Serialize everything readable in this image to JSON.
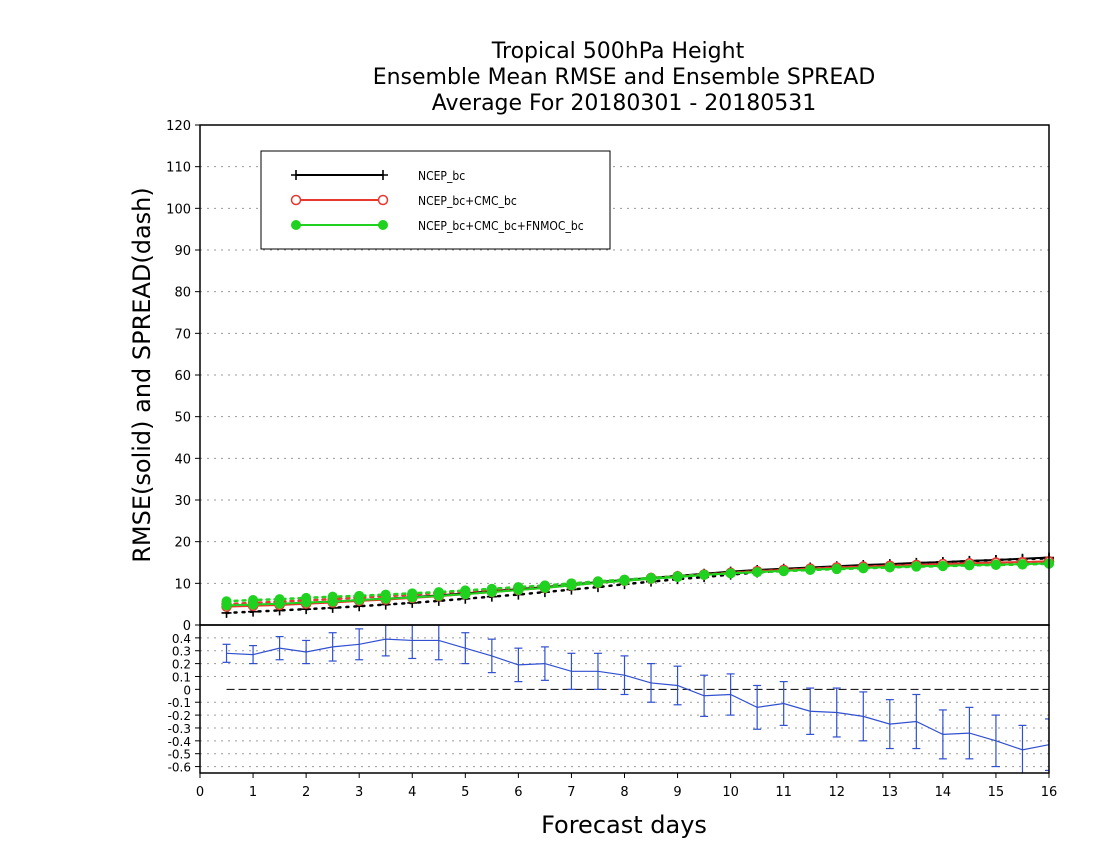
{
  "title_lines": [
    "Tropical 500hPa Height",
    "Ensemble Mean RMSE and Ensemble SPREAD",
    "Average For 20180301 - 20180531"
  ],
  "chart_data": [
    {
      "type": "line",
      "ylabel": "RMSE(solid) and SPREAD(dash)",
      "xlim": [
        0,
        16
      ],
      "ylim": [
        0,
        120
      ],
      "yticks": [
        0,
        10,
        20,
        30,
        40,
        50,
        60,
        70,
        80,
        90,
        100,
        110,
        120
      ],
      "grid": true,
      "legend_position": "top-left",
      "x": [
        0.5,
        1.0,
        1.5,
        2.0,
        2.5,
        3.0,
        3.5,
        4.0,
        4.5,
        5.0,
        5.5,
        6.0,
        6.5,
        7.0,
        7.5,
        8.0,
        8.5,
        9.0,
        9.5,
        10.0,
        10.5,
        11.0,
        11.5,
        12.0,
        12.5,
        13.0,
        13.5,
        14.0,
        14.5,
        15.0,
        15.5,
        16.0
      ],
      "series": [
        {
          "name": "NCEP_bc",
          "color": "#000000",
          "marker": "plus",
          "rmse": [
            4.6,
            4.8,
            5.0,
            5.3,
            5.6,
            6.0,
            6.3,
            6.7,
            7.1,
            7.6,
            8.1,
            8.6,
            9.1,
            9.7,
            10.3,
            10.8,
            11.3,
            11.8,
            12.3,
            12.8,
            13.2,
            13.5,
            13.8,
            14.1,
            14.4,
            14.6,
            14.9,
            15.1,
            15.4,
            15.6,
            15.9,
            16.2
          ],
          "spread": [
            2.9,
            3.2,
            3.5,
            3.8,
            4.1,
            4.5,
            4.9,
            5.3,
            5.8,
            6.3,
            6.8,
            7.3,
            7.9,
            8.5,
            9.1,
            9.8,
            10.4,
            11.0,
            11.5,
            12.1,
            12.6,
            13.0,
            13.4,
            13.8,
            14.2,
            14.5,
            14.8,
            15.1,
            15.3,
            15.6,
            15.8,
            16.0
          ]
        },
        {
          "name": "NCEP_bc+CMC_bc",
          "color": "#e8372f",
          "marker": "open-circle",
          "rmse": [
            4.4,
            4.6,
            4.8,
            5.1,
            5.4,
            5.8,
            6.1,
            6.5,
            6.9,
            7.4,
            7.9,
            8.4,
            8.9,
            9.5,
            10.1,
            10.6,
            11.1,
            11.6,
            12.1,
            12.5,
            12.9,
            13.2,
            13.5,
            13.8,
            14.0,
            14.2,
            14.4,
            14.6,
            14.8,
            15.0,
            15.1,
            15.3
          ],
          "spread": [
            5.0,
            5.3,
            5.6,
            5.9,
            6.2,
            6.6,
            6.9,
            7.3,
            7.7,
            8.1,
            8.5,
            9.0,
            9.4,
            9.9,
            10.4,
            10.8,
            11.3,
            11.7,
            12.1,
            12.5,
            12.9,
            13.2,
            13.5,
            13.8,
            14.0,
            14.2,
            14.4,
            14.6,
            14.8,
            14.9,
            15.0,
            15.2
          ]
        },
        {
          "name": "NCEP_bc+CMC_bc+FNMOC_bc",
          "color": "#1fd21f",
          "marker": "filled-circle",
          "rmse": [
            4.7,
            4.9,
            5.1,
            5.4,
            5.6,
            6.0,
            6.3,
            6.6,
            7.0,
            7.4,
            7.9,
            8.4,
            8.9,
            9.5,
            10.1,
            10.6,
            11.1,
            11.5,
            12.0,
            12.4,
            12.7,
            13.0,
            13.3,
            13.5,
            13.7,
            13.9,
            14.1,
            14.2,
            14.4,
            14.5,
            14.6,
            14.8
          ],
          "spread": [
            5.7,
            6.0,
            6.2,
            6.5,
            6.8,
            7.0,
            7.3,
            7.6,
            7.9,
            8.3,
            8.7,
            9.1,
            9.5,
            10.0,
            10.5,
            10.9,
            11.3,
            11.7,
            12.1,
            12.4,
            12.7,
            12.9,
            13.2,
            13.4,
            13.6,
            13.8,
            14.0,
            14.1,
            14.3,
            14.4,
            14.5,
            14.7
          ]
        }
      ]
    },
    {
      "type": "line",
      "xlabel": "Forecast days",
      "xlim": [
        0,
        16
      ],
      "ylim": [
        -0.65,
        0.45
      ],
      "xticks": [
        0,
        1,
        2,
        3,
        4,
        5,
        6,
        7,
        8,
        9,
        10,
        11,
        12,
        13,
        14,
        15,
        16
      ],
      "yticks": [
        -0.6,
        -0.5,
        -0.4,
        -0.3,
        -0.2,
        -0.1,
        0,
        0.1,
        0.2,
        0.3,
        0.4
      ],
      "ytick_labels": [
        "-0.6",
        "-0.5",
        "-0.4",
        "-0.3",
        "-0.2",
        "-0.1",
        "0",
        "0.1",
        "0.2",
        "0.3",
        "0.4"
      ],
      "top_label": "0",
      "grid": true,
      "zero_line": true,
      "color": "#3050d0",
      "x": [
        0.5,
        1.0,
        1.5,
        2.0,
        2.5,
        3.0,
        3.5,
        4.0,
        4.5,
        5.0,
        5.5,
        6.0,
        6.5,
        7.0,
        7.5,
        8.0,
        8.5,
        9.0,
        9.5,
        10.0,
        10.5,
        11.0,
        11.5,
        12.0,
        12.5,
        13.0,
        13.5,
        14.0,
        14.5,
        15.0,
        15.5,
        16.0
      ],
      "values": [
        0.28,
        0.27,
        0.32,
        0.29,
        0.33,
        0.35,
        0.39,
        0.38,
        0.38,
        0.32,
        0.26,
        0.19,
        0.2,
        0.14,
        0.14,
        0.11,
        0.05,
        0.03,
        -0.05,
        -0.04,
        -0.14,
        -0.11,
        -0.17,
        -0.18,
        -0.21,
        -0.27,
        -0.25,
        -0.35,
        -0.34,
        -0.4,
        -0.47,
        -0.43
      ],
      "error": [
        0.07,
        0.07,
        0.09,
        0.09,
        0.11,
        0.12,
        0.13,
        0.14,
        0.15,
        0.12,
        0.13,
        0.13,
        0.13,
        0.14,
        0.14,
        0.15,
        0.15,
        0.15,
        0.16,
        0.16,
        0.17,
        0.17,
        0.18,
        0.19,
        0.19,
        0.19,
        0.21,
        0.19,
        0.2,
        0.2,
        0.19,
        0.2
      ]
    }
  ]
}
